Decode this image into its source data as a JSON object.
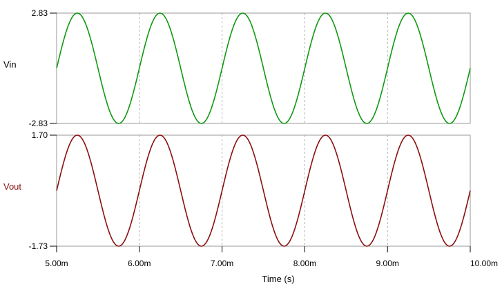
{
  "chart_data": {
    "type": "line",
    "xlabel": "Time (s)",
    "x_ticks": [
      "5.00m",
      "6.00m",
      "7.00m",
      "8.00m",
      "9.00m",
      "10.00m"
    ],
    "x_range": [
      0.005,
      0.01
    ],
    "grid": "vertical dashed at each x tick",
    "panels": [
      {
        "name": "Vin",
        "color": "#119911",
        "ylim": [
          -2.83,
          2.83
        ],
        "y_tick_labels": [
          "2.83",
          "-2.83"
        ],
        "series": [
          {
            "name": "Vin",
            "frequency_hz": 1000,
            "amplitude": 2.83,
            "offset": 0,
            "value_at_x_start": 0,
            "peaks_x": [
              0.00525,
              0.00625,
              0.00725,
              0.00825,
              0.00925
            ],
            "troughs_x": [
              0.00575,
              0.00675,
              0.00775,
              0.00875,
              0.00975
            ]
          }
        ]
      },
      {
        "name": "Vout",
        "color": "#8b1010",
        "ylim": [
          -1.73,
          1.7
        ],
        "y_tick_labels": [
          "1.70",
          "-1.73"
        ],
        "series": [
          {
            "name": "Vout",
            "frequency_hz": 1000,
            "amplitude": 1.715,
            "offset": -0.015,
            "value_at_x_start": 0,
            "peaks_x": [
              0.00525,
              0.00625,
              0.00725,
              0.00825,
              0.00925
            ],
            "troughs_x": [
              0.00575,
              0.00675,
              0.00775,
              0.00875,
              0.00975
            ]
          }
        ]
      }
    ]
  }
}
